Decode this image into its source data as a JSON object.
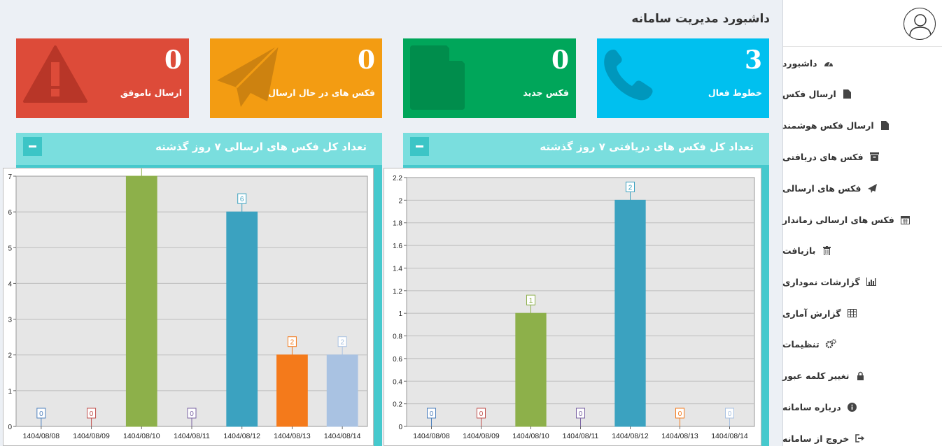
{
  "page_title": "داشبورد مدیریت سامانه",
  "sidebar": {
    "items": [
      {
        "label": "داشبورد",
        "icon": "dashboard-icon"
      },
      {
        "label": "ارسال فکس",
        "icon": "file-icon"
      },
      {
        "label": "ارسال فکس هوشمند",
        "icon": "file-icon"
      },
      {
        "label": "فکس های دریافتی",
        "icon": "archive-icon"
      },
      {
        "label": "فکس های ارسالی",
        "icon": "send-icon"
      },
      {
        "label": "فکس های ارسالی زماندار",
        "icon": "calendar-icon"
      },
      {
        "label": "بازیافت",
        "icon": "trash-icon"
      },
      {
        "label": "گزارشات نموداری",
        "icon": "bar-chart-icon"
      },
      {
        "label": "گزارش آماری",
        "icon": "table-icon"
      },
      {
        "label": "تنظیمات",
        "icon": "gears-icon"
      },
      {
        "label": "تغییر کلمه عبور",
        "icon": "lock-icon"
      },
      {
        "label": "درباره سامانه",
        "icon": "info-icon"
      },
      {
        "label": "خروج از سامانه",
        "icon": "sign-out-icon"
      }
    ]
  },
  "stats": {
    "active_lines": {
      "value": "3",
      "label": "خطوط فعال",
      "color": "#00c0ef"
    },
    "new_fax": {
      "value": "0",
      "label": "فکس جدید",
      "color": "#00a65a"
    },
    "sending_fax": {
      "value": "0",
      "label": "فکس های در حال ارسال",
      "color": "#f39c12"
    },
    "failed_send": {
      "value": "0",
      "label": "ارسال ناموفق",
      "color": "#dd4b39"
    }
  },
  "panels": {
    "received": {
      "title": "تعداد کل فکس های دریافتی ۷ روز گذشته"
    },
    "sent": {
      "title": "تعداد کل فکس های ارسالی ۷ روز گذشته"
    }
  },
  "chart_data": [
    {
      "type": "bar",
      "categories": [
        "1404/08/08",
        "1404/08/09",
        "1404/08/10",
        "1404/08/11",
        "1404/08/12",
        "1404/08/13",
        "1404/08/14"
      ],
      "values": [
        0,
        0,
        7,
        0,
        6,
        2,
        2
      ],
      "colors": [
        "#4f81bd",
        "#c0504d",
        "#8db04a",
        "#7a63a3",
        "#3ba2c0",
        "#f47a1b",
        "#a9c2e2"
      ],
      "ylim": [
        0,
        7
      ],
      "yticks": [
        "0",
        "1",
        "2",
        "3",
        "4",
        "5",
        "6",
        "7"
      ],
      "grid": true
    },
    {
      "type": "bar",
      "categories": [
        "1404/08/08",
        "1404/08/09",
        "1404/08/10",
        "1404/08/11",
        "1404/08/12",
        "1404/08/13",
        "1404/08/14"
      ],
      "values": [
        0,
        0,
        1,
        0,
        2,
        0,
        0
      ],
      "colors": [
        "#4f81bd",
        "#c0504d",
        "#8db04a",
        "#7a63a3",
        "#3ba2c0",
        "#f47a1b",
        "#a9c2e2"
      ],
      "ylim": [
        0,
        2.2
      ],
      "yticks": [
        "0",
        "0.2",
        "0.4",
        "0.6",
        "0.8",
        "1",
        "1.2",
        "1.4",
        "1.6",
        "1.8",
        "2",
        "2.2"
      ],
      "grid": true
    }
  ]
}
